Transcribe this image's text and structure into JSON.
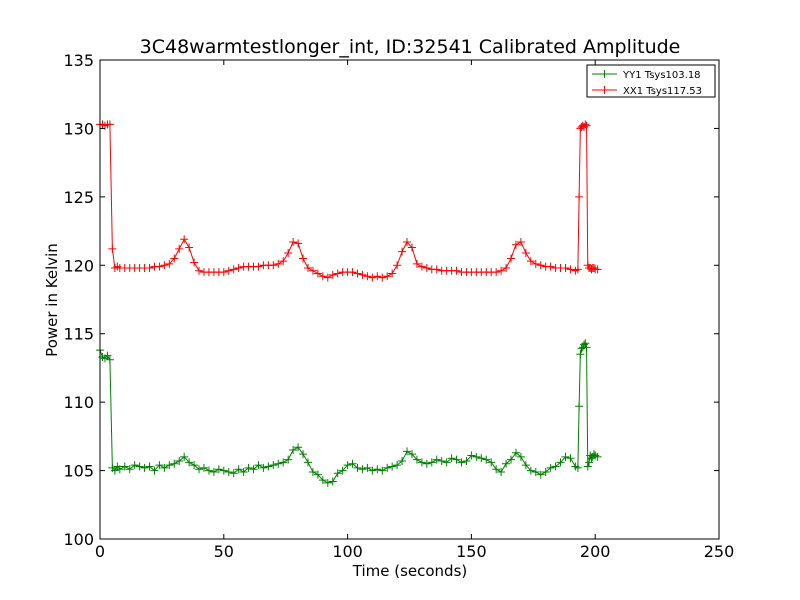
{
  "chart_data": {
    "type": "line",
    "title": "3C48warmtestlonger_int, ID:32541 Calibrated Amplitude",
    "xlabel": "Time (seconds)",
    "ylabel": "Power in Kelvin",
    "xlim": [
      0,
      250
    ],
    "ylim": [
      100,
      135
    ],
    "xticks": [
      "0",
      "50",
      "100",
      "150",
      "200",
      "250"
    ],
    "yticks": [
      "100",
      "105",
      "110",
      "115",
      "120",
      "125",
      "130",
      "135"
    ],
    "grid": false,
    "legend_placement": "top-right",
    "series": [
      {
        "name": "YY1 Tsys103.18",
        "color": "#008000",
        "marker": "+",
        "x": [
          0,
          1,
          2,
          3,
          4,
          5,
          6,
          7,
          8,
          10,
          12,
          14,
          16,
          18,
          20,
          22,
          24,
          26,
          28,
          30,
          32,
          34,
          36,
          38,
          40,
          42,
          44,
          46,
          48,
          50,
          52,
          54,
          56,
          58,
          60,
          62,
          64,
          66,
          68,
          70,
          72,
          74,
          76,
          78,
          80,
          82,
          84,
          86,
          88,
          90,
          92,
          94,
          96,
          98,
          100,
          102,
          104,
          106,
          108,
          110,
          112,
          114,
          116,
          118,
          120,
          122,
          124,
          126,
          128,
          130,
          132,
          134,
          136,
          138,
          140,
          142,
          144,
          146,
          148,
          150,
          152,
          154,
          156,
          158,
          160,
          162,
          164,
          166,
          168,
          170,
          172,
          174,
          176,
          178,
          180,
          182,
          184,
          186,
          188,
          190,
          192,
          193,
          193.5,
          194,
          194.5,
          195,
          195.5,
          196,
          196.5,
          197,
          197.5,
          198,
          198.5,
          199,
          199.5,
          200,
          201
        ],
        "y": [
          113.8,
          113.3,
          113.2,
          113.4,
          113.1,
          105.2,
          105.0,
          105.3,
          105.1,
          105.3,
          105.1,
          105.4,
          105.3,
          105.2,
          105.3,
          105.0,
          105.4,
          105.2,
          105.4,
          105.5,
          105.7,
          106.0,
          105.6,
          105.4,
          105.1,
          105.2,
          105.0,
          104.9,
          105.1,
          105.0,
          104.9,
          104.8,
          105.1,
          104.9,
          105.2,
          105.1,
          105.4,
          105.2,
          105.3,
          105.4,
          105.5,
          105.6,
          105.8,
          106.5,
          106.7,
          106.2,
          105.6,
          104.9,
          104.7,
          104.3,
          104.1,
          104.2,
          104.8,
          105.0,
          105.4,
          105.5,
          105.2,
          105.1,
          105.2,
          105.0,
          105.1,
          105.0,
          105.2,
          105.3,
          105.4,
          105.7,
          106.4,
          106.2,
          105.8,
          105.6,
          105.5,
          105.6,
          105.8,
          105.7,
          105.6,
          105.9,
          105.8,
          105.6,
          105.7,
          106.1,
          106.0,
          105.9,
          105.8,
          105.6,
          105.1,
          104.9,
          105.5,
          105.8,
          106.3,
          106.0,
          105.4,
          105.0,
          104.9,
          104.7,
          104.9,
          105.2,
          105.3,
          105.6,
          106.0,
          105.9,
          105.3,
          105.2,
          109.7,
          113.5,
          113.9,
          114.0,
          114.2,
          114.3,
          114.0,
          105.3,
          105.6,
          106.1,
          105.9,
          106.0,
          106.2,
          106.1,
          106.0
        ]
      },
      {
        "name": "XX1 Tsys117.53",
        "color": "#ff0000",
        "marker": "+",
        "x": [
          0,
          1,
          2,
          3,
          4,
          5,
          6,
          7,
          8,
          10,
          12,
          14,
          16,
          18,
          20,
          22,
          24,
          26,
          28,
          30,
          32,
          34,
          36,
          38,
          40,
          42,
          44,
          46,
          48,
          50,
          52,
          54,
          56,
          58,
          60,
          62,
          64,
          66,
          68,
          70,
          72,
          74,
          76,
          78,
          80,
          82,
          84,
          86,
          88,
          90,
          92,
          94,
          96,
          98,
          100,
          102,
          104,
          106,
          108,
          110,
          112,
          114,
          116,
          118,
          120,
          122,
          124,
          126,
          128,
          130,
          132,
          134,
          136,
          138,
          140,
          142,
          144,
          146,
          148,
          150,
          152,
          154,
          156,
          158,
          160,
          162,
          164,
          166,
          168,
          170,
          172,
          174,
          176,
          178,
          180,
          182,
          184,
          186,
          188,
          190,
          192,
          193,
          193.5,
          194,
          194.5,
          195,
          195.5,
          196,
          196.5,
          197,
          197.5,
          198,
          198.5,
          199,
          199.5,
          200,
          201
        ],
        "y": [
          130.3,
          130.3,
          130.2,
          130.3,
          130.3,
          121.2,
          119.8,
          119.9,
          119.8,
          119.8,
          119.8,
          119.8,
          119.8,
          119.8,
          119.8,
          119.9,
          119.9,
          120.0,
          120.1,
          120.5,
          121.2,
          121.9,
          121.3,
          120.2,
          119.6,
          119.5,
          119.5,
          119.5,
          119.5,
          119.5,
          119.6,
          119.7,
          119.8,
          119.9,
          119.9,
          119.9,
          119.9,
          120.0,
          120.0,
          120.0,
          120.1,
          120.3,
          120.9,
          121.7,
          121.6,
          120.5,
          119.8,
          119.6,
          119.4,
          119.2,
          119.1,
          119.3,
          119.4,
          119.5,
          119.5,
          119.5,
          119.4,
          119.3,
          119.2,
          119.1,
          119.2,
          119.1,
          119.2,
          119.4,
          120.0,
          121.0,
          121.7,
          121.3,
          120.1,
          119.9,
          119.8,
          119.7,
          119.7,
          119.6,
          119.6,
          119.6,
          119.6,
          119.5,
          119.5,
          119.5,
          119.5,
          119.5,
          119.5,
          119.5,
          119.5,
          119.6,
          119.8,
          120.5,
          121.5,
          121.7,
          120.9,
          120.3,
          120.1,
          120.0,
          119.9,
          119.9,
          119.8,
          119.8,
          119.8,
          119.7,
          119.6,
          119.7,
          125.0,
          130.0,
          130.1,
          130.2,
          130.1,
          130.3,
          130.2,
          120.0,
          119.8,
          119.8,
          119.7,
          119.8,
          119.8,
          119.7,
          119.7
        ]
      }
    ]
  }
}
